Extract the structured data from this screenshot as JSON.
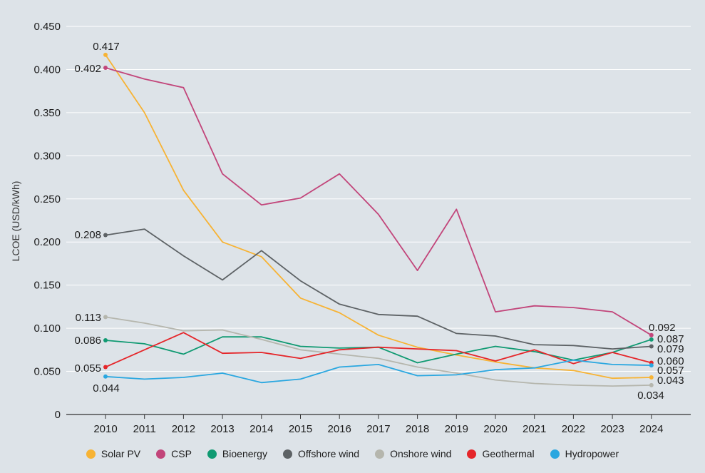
{
  "chart_data": {
    "type": "line",
    "ylabel": "LCOE (USD/kWh)",
    "xlabel": "",
    "x": [
      2010,
      2011,
      2012,
      2013,
      2014,
      2015,
      2016,
      2017,
      2018,
      2019,
      2020,
      2021,
      2022,
      2023,
      2024
    ],
    "ylim": [
      0,
      0.45
    ],
    "yticks": [
      "0",
      "0.050",
      "0.100",
      "0.150",
      "0.200",
      "0.250",
      "0.300",
      "0.350",
      "0.400",
      "0.450"
    ],
    "grid": true,
    "legend_position": "bottom",
    "series": [
      {
        "name": "Solar PV",
        "color": "#f7b334",
        "values": [
          0.417,
          0.35,
          0.26,
          0.2,
          0.183,
          0.135,
          0.118,
          0.092,
          0.078,
          0.069,
          0.061,
          0.054,
          0.051,
          0.042,
          0.043
        ],
        "labels": [
          {
            "index": 0,
            "text": "0.417"
          },
          {
            "index": 14,
            "text": "0.043"
          }
        ]
      },
      {
        "name": "CSP",
        "color": "#c2457a",
        "values": [
          0.402,
          0.389,
          0.379,
          0.279,
          0.243,
          0.251,
          0.279,
          0.232,
          0.167,
          0.238,
          0.119,
          0.126,
          0.124,
          0.119,
          0.092
        ],
        "labels": [
          {
            "index": 0,
            "text": "0.402"
          },
          {
            "index": 14,
            "text": "0.092"
          }
        ]
      },
      {
        "name": "Bioenergy",
        "color": "#109a72",
        "values": [
          0.086,
          0.082,
          0.07,
          0.09,
          0.09,
          0.079,
          0.077,
          0.078,
          0.06,
          0.07,
          0.079,
          0.073,
          0.063,
          0.072,
          0.087
        ],
        "labels": [
          {
            "index": 0,
            "text": "0.086"
          },
          {
            "index": 14,
            "text": "0.087"
          }
        ]
      },
      {
        "name": "Offshore wind",
        "color": "#5d6265",
        "values": [
          0.208,
          0.215,
          0.184,
          0.156,
          0.19,
          0.155,
          0.128,
          0.116,
          0.114,
          0.094,
          0.091,
          0.081,
          0.08,
          0.076,
          0.079
        ],
        "labels": [
          {
            "index": 0,
            "text": "0.208"
          },
          {
            "index": 14,
            "text": "0.079"
          }
        ]
      },
      {
        "name": "Onshore wind",
        "color": "#b5b6ad",
        "values": [
          0.113,
          0.106,
          0.097,
          0.098,
          0.087,
          0.075,
          0.07,
          0.065,
          0.055,
          0.048,
          0.04,
          0.036,
          0.034,
          0.033,
          0.034
        ],
        "labels": [
          {
            "index": 0,
            "text": "0.113"
          },
          {
            "index": 14,
            "text": "0.034"
          }
        ]
      },
      {
        "name": "Geothermal",
        "color": "#e5262a",
        "values": [
          0.055,
          0.075,
          0.095,
          0.071,
          0.072,
          0.065,
          0.075,
          0.078,
          0.076,
          0.074,
          0.062,
          0.075,
          0.059,
          0.072,
          0.06
        ],
        "labels": [
          {
            "index": 0,
            "text": "0.055"
          },
          {
            "index": 14,
            "text": "0.060"
          }
        ]
      },
      {
        "name": "Hydropower",
        "color": "#2aa7e0",
        "values": [
          0.044,
          0.041,
          0.043,
          0.048,
          0.037,
          0.041,
          0.055,
          0.058,
          0.045,
          0.046,
          0.052,
          0.054,
          0.063,
          0.058,
          0.057
        ],
        "labels": [
          {
            "index": 0,
            "text": "0.044"
          },
          {
            "index": 14,
            "text": "0.057"
          }
        ]
      }
    ]
  }
}
